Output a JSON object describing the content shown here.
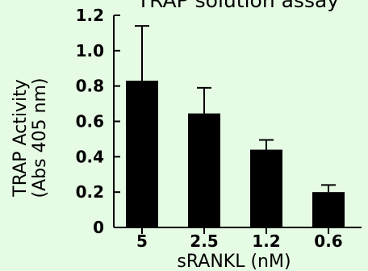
{
  "chart_data": {
    "type": "bar",
    "title": "TRAP solution assay",
    "xlabel": "sRANKL (nM)",
    "ylabel_line1": "TRAP Activity",
    "ylabel_line2": "(Abs 405 nm)",
    "categories": [
      "5",
      "2.5",
      "1.2",
      "0.6"
    ],
    "series": [
      {
        "values": [
          0.83,
          0.645,
          0.44,
          0.2
        ],
        "error": [
          0.31,
          0.145,
          0.055,
          0.04
        ],
        "color": "#000000"
      }
    ],
    "ylim": [
      0,
      1.2
    ],
    "yticks": [
      0,
      0.2,
      0.4,
      0.6,
      0.8,
      1.0,
      1.2
    ],
    "ytick_labels": [
      "0",
      "0.2",
      "0.4",
      "0.6",
      "0.8",
      "1.0",
      "1.2"
    ],
    "grid": false,
    "background": "#e6fbe4"
  }
}
